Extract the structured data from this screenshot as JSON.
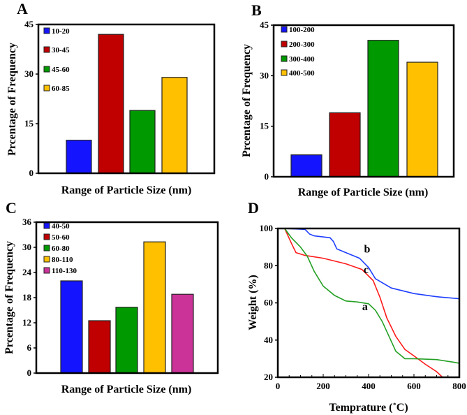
{
  "chart_data": [
    {
      "panel": "A",
      "type": "bar",
      "xlabel": "Range of Particle Size (nm)",
      "ylabel": "Prcentage  of Frequency",
      "ylim": [
        0,
        45
      ],
      "yticks": [
        0,
        15,
        30,
        45
      ],
      "legend": "top-left",
      "categories": [
        "10-20",
        "30-45",
        "45-60",
        "60-85"
      ],
      "values": [
        10,
        42,
        19,
        29
      ],
      "colors": [
        "#1414ff",
        "#c00000",
        "#009a00",
        "#ffc000"
      ]
    },
    {
      "panel": "B",
      "type": "bar",
      "xlabel": "Range of Particle Size (nm)",
      "ylabel": "Prcentage  of Frequency",
      "ylim": [
        0,
        45
      ],
      "yticks": [
        0,
        15,
        30,
        45
      ],
      "legend": "top-left",
      "categories": [
        "100-200",
        "200-300",
        "300-400",
        "400-500"
      ],
      "values": [
        6.5,
        19,
        40.5,
        34
      ],
      "colors": [
        "#1414ff",
        "#c00000",
        "#009a00",
        "#ffc000"
      ]
    },
    {
      "panel": "C",
      "type": "bar",
      "xlabel": "Range of Particle Size (nm)",
      "ylabel": "Prcentage  of Frequency",
      "ylim": [
        0,
        36
      ],
      "yticks": [
        0,
        6,
        12,
        18,
        24,
        30,
        36
      ],
      "legend": "top-left",
      "categories": [
        "40-50",
        "50-60",
        "60-80",
        "80-110",
        "110-130"
      ],
      "values": [
        22,
        12.5,
        15.7,
        31.3,
        18.8
      ],
      "colors": [
        "#1414ff",
        "#c00000",
        "#009a00",
        "#ffc000",
        "#cc3399"
      ]
    },
    {
      "panel": "D",
      "type": "line",
      "xlabel": "Temprature (˚C)",
      "ylabel": "Weight (%)",
      "xlim": [
        0,
        800
      ],
      "ylim": [
        20,
        100
      ],
      "xticks": [
        0,
        200,
        400,
        600,
        800
      ],
      "yticks": [
        20,
        40,
        60,
        80,
        100
      ],
      "series": [
        {
          "name": "b",
          "color": "#1f3fff",
          "label_at": [
            380,
            87
          ],
          "x": [
            30,
            120,
            140,
            160,
            230,
            245,
            260,
            300,
            360,
            400,
            430,
            500,
            600,
            700,
            800
          ],
          "y": [
            100,
            99.5,
            97,
            96,
            95,
            93,
            89,
            87,
            84,
            79,
            73,
            68,
            65,
            63.3,
            62.2
          ]
        },
        {
          "name": "c",
          "color": "#ff1a1a",
          "label_at": [
            378,
            76
          ],
          "x": [
            30,
            60,
            80,
            120,
            200,
            250,
            300,
            370,
            420,
            450,
            480,
            520,
            560,
            600,
            650,
            700,
            730
          ],
          "y": [
            100,
            92,
            87,
            85.5,
            84,
            82.5,
            81,
            78,
            72,
            63,
            52,
            42,
            35,
            31.5,
            27,
            23,
            19.5
          ]
        },
        {
          "name": "a",
          "color": "#22a022",
          "label_at": [
            372,
            56
          ],
          "x": [
            30,
            60,
            100,
            130,
            160,
            200,
            250,
            300,
            350,
            400,
            430,
            460,
            490,
            520,
            560,
            600,
            700,
            780,
            800
          ],
          "y": [
            100,
            95,
            90,
            85,
            77,
            69,
            64,
            61,
            60.5,
            59.5,
            56,
            50,
            42,
            34,
            30,
            30,
            29.5,
            28,
            27.5
          ]
        }
      ]
    }
  ]
}
